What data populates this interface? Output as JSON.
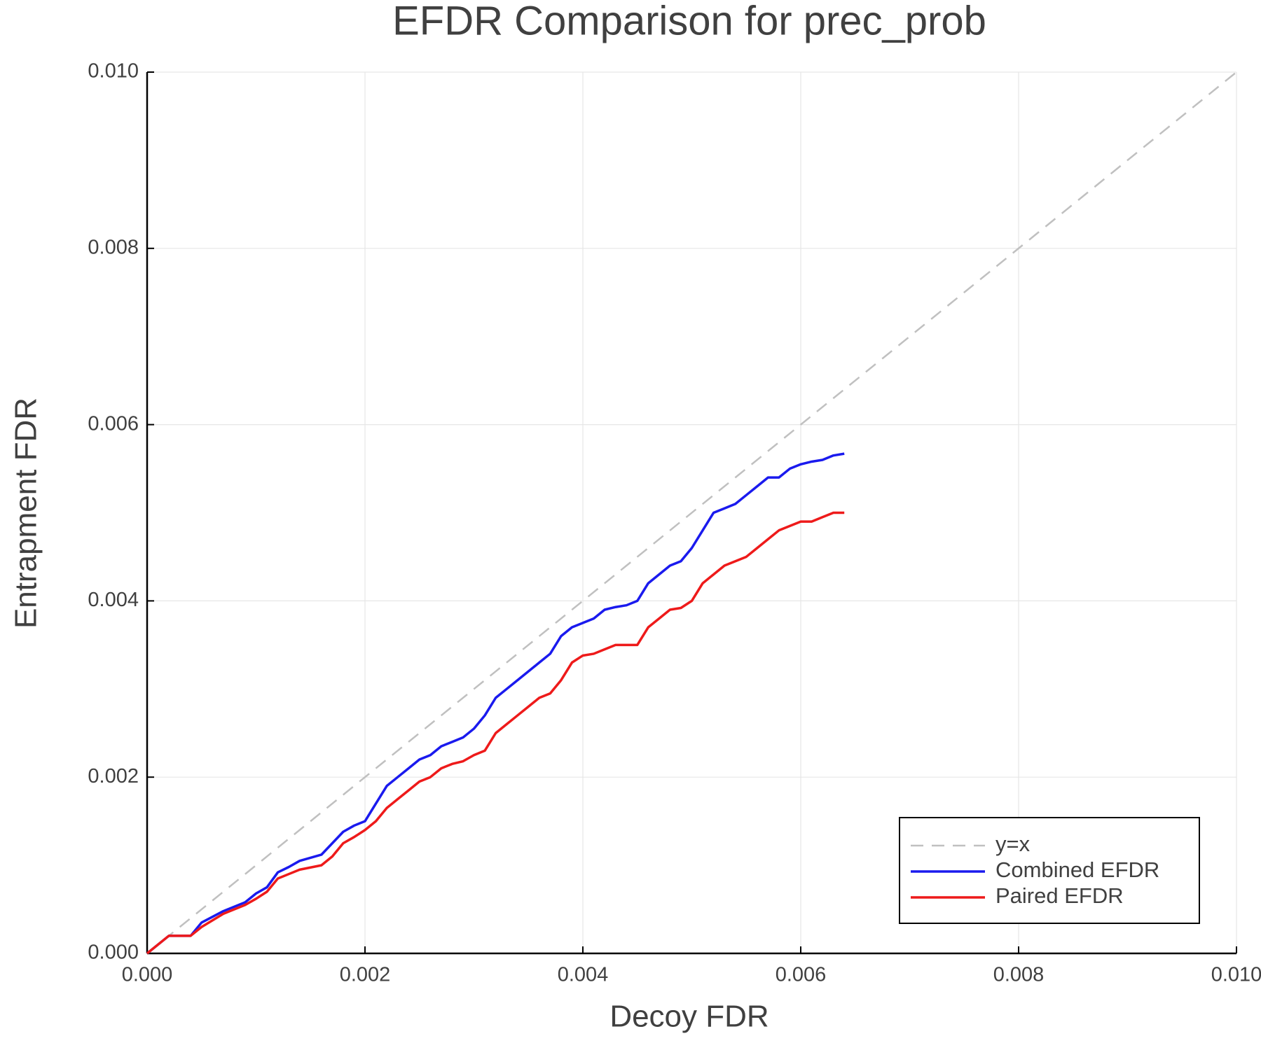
{
  "chart_data": {
    "type": "line",
    "title": "EFDR Comparison for prec_prob",
    "x_label": "Decoy FDR",
    "y_label": "Entrapment FDR",
    "xlim": [
      0,
      0.01
    ],
    "ylim": [
      0,
      0.01
    ],
    "xticks": [
      {
        "value": 0,
        "label": "0.000"
      },
      {
        "value": 0.002,
        "label": "0.002"
      },
      {
        "value": 0.004,
        "label": "0.004"
      },
      {
        "value": 0.006,
        "label": "0.006"
      },
      {
        "value": 0.008,
        "label": "0.008"
      },
      {
        "value": 0.01,
        "label": "0.010"
      }
    ],
    "yticks": [
      {
        "value": 0,
        "label": "0.000"
      },
      {
        "value": 0.002,
        "label": "0.002"
      },
      {
        "value": 0.004,
        "label": "0.004"
      },
      {
        "value": 0.006,
        "label": "0.006"
      },
      {
        "value": 0.008,
        "label": "0.008"
      },
      {
        "value": 0.01,
        "label": "0.010"
      }
    ],
    "grid": true,
    "legend": "lower right",
    "series": [
      {
        "name": "y=x",
        "color": "#c0c0c0",
        "dashed": true,
        "x": [
          0,
          0.01
        ],
        "values": [
          0,
          0.01
        ]
      },
      {
        "name": "Combined EFDR",
        "color": "#1a1aee",
        "x": [
          0,
          0.0002,
          0.0004,
          0.0005,
          0.0007,
          0.0009,
          0.001,
          0.0011,
          0.0012,
          0.0013,
          0.0014,
          0.0016,
          0.0017,
          0.0018,
          0.0019,
          0.002,
          0.0021,
          0.0022,
          0.0023,
          0.0024,
          0.0025,
          0.0026,
          0.0027,
          0.0028,
          0.0029,
          0.003,
          0.0031,
          0.0032,
          0.0033,
          0.0034,
          0.0035,
          0.0036,
          0.0037,
          0.0038,
          0.0039,
          0.004,
          0.0041,
          0.0042,
          0.0043,
          0.0044,
          0.0045,
          0.0046,
          0.0047,
          0.0048,
          0.0049,
          0.005,
          0.0051,
          0.0052,
          0.0053,
          0.0054,
          0.0055,
          0.0056,
          0.0057,
          0.0058,
          0.0059,
          0.006,
          0.0061,
          0.0062,
          0.0063,
          0.0064
        ],
        "values": [
          0,
          0.0002,
          0.0002,
          0.00035,
          0.00048,
          0.00058,
          0.00068,
          0.00075,
          0.00092,
          0.00098,
          0.00105,
          0.00112,
          0.00125,
          0.00138,
          0.00145,
          0.0015,
          0.0017,
          0.0019,
          0.002,
          0.0021,
          0.0022,
          0.00225,
          0.00235,
          0.0024,
          0.00245,
          0.00255,
          0.0027,
          0.0029,
          0.003,
          0.0031,
          0.0032,
          0.0033,
          0.0034,
          0.0036,
          0.0037,
          0.00375,
          0.0038,
          0.0039,
          0.00393,
          0.00395,
          0.004,
          0.0042,
          0.0043,
          0.0044,
          0.00445,
          0.0046,
          0.0048,
          0.005,
          0.00505,
          0.0051,
          0.0052,
          0.0053,
          0.0054,
          0.0054,
          0.0055,
          0.00555,
          0.00558,
          0.0056,
          0.00565,
          0.00567
        ]
      },
      {
        "name": "Paired EFDR",
        "color": "#ee1a1a",
        "x": [
          0,
          0.0002,
          0.0004,
          0.0005,
          0.0007,
          0.0009,
          0.001,
          0.0011,
          0.0012,
          0.0013,
          0.0014,
          0.0016,
          0.0017,
          0.0018,
          0.0019,
          0.002,
          0.0021,
          0.0022,
          0.0023,
          0.0024,
          0.0025,
          0.0026,
          0.0027,
          0.0028,
          0.0029,
          0.003,
          0.0031,
          0.0032,
          0.0033,
          0.0034,
          0.0035,
          0.0036,
          0.0037,
          0.0038,
          0.0039,
          0.004,
          0.0041,
          0.0042,
          0.0043,
          0.0044,
          0.0045,
          0.0046,
          0.0047,
          0.0048,
          0.0049,
          0.005,
          0.0051,
          0.0052,
          0.0053,
          0.0054,
          0.0055,
          0.0056,
          0.0057,
          0.0058,
          0.0059,
          0.006,
          0.0061,
          0.0062,
          0.0063,
          0.0064
        ],
        "values": [
          0,
          0.0002,
          0.0002,
          0.0003,
          0.00045,
          0.00055,
          0.00062,
          0.0007,
          0.00085,
          0.0009,
          0.00095,
          0.001,
          0.0011,
          0.00125,
          0.00132,
          0.0014,
          0.0015,
          0.00165,
          0.00175,
          0.00185,
          0.00195,
          0.002,
          0.0021,
          0.00215,
          0.00218,
          0.00225,
          0.0023,
          0.0025,
          0.0026,
          0.0027,
          0.0028,
          0.0029,
          0.00295,
          0.0031,
          0.0033,
          0.00338,
          0.0034,
          0.00345,
          0.0035,
          0.0035,
          0.0035,
          0.0037,
          0.0038,
          0.0039,
          0.00392,
          0.004,
          0.0042,
          0.0043,
          0.0044,
          0.00445,
          0.0045,
          0.0046,
          0.0047,
          0.0048,
          0.00485,
          0.0049,
          0.0049,
          0.00495,
          0.005,
          0.005
        ]
      }
    ]
  }
}
